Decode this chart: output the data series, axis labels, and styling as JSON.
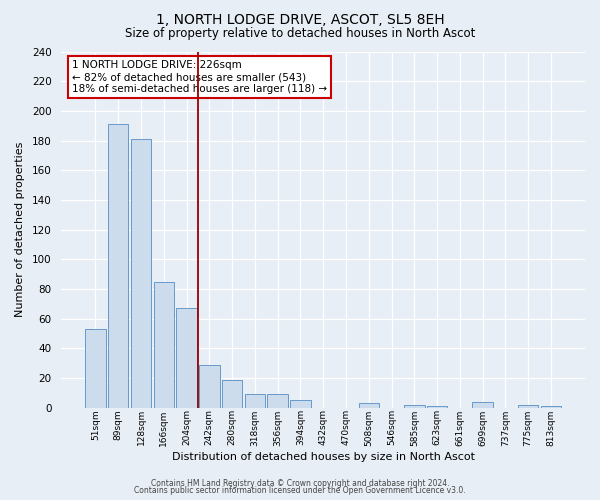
{
  "title": "1, NORTH LODGE DRIVE, ASCOT, SL5 8EH",
  "subtitle": "Size of property relative to detached houses in North Ascot",
  "xlabel": "Distribution of detached houses by size in North Ascot",
  "ylabel": "Number of detached properties",
  "bar_color": "#ccdcec",
  "bar_edge_color": "#6699cc",
  "categories": [
    "51sqm",
    "89sqm",
    "128sqm",
    "166sqm",
    "204sqm",
    "242sqm",
    "280sqm",
    "318sqm",
    "356sqm",
    "394sqm",
    "432sqm",
    "470sqm",
    "508sqm",
    "546sqm",
    "585sqm",
    "623sqm",
    "661sqm",
    "699sqm",
    "737sqm",
    "775sqm",
    "813sqm"
  ],
  "values": [
    53,
    191,
    181,
    85,
    67,
    29,
    19,
    9,
    9,
    5,
    0,
    0,
    3,
    0,
    2,
    1,
    0,
    4,
    0,
    2,
    1
  ],
  "vline_color": "#990000",
  "ylim": [
    0,
    240
  ],
  "yticks": [
    0,
    20,
    40,
    60,
    80,
    100,
    120,
    140,
    160,
    180,
    200,
    220,
    240
  ],
  "annotation_title": "1 NORTH LODGE DRIVE: 226sqm",
  "annotation_line1": "← 82% of detached houses are smaller (543)",
  "annotation_line2": "18% of semi-detached houses are larger (118) →",
  "annotation_box_color": "#ffffff",
  "annotation_box_edge": "#cc0000",
  "footer1": "Contains HM Land Registry data © Crown copyright and database right 2024.",
  "footer2": "Contains public sector information licensed under the Open Government Licence v3.0.",
  "background_color": "#e8eef5",
  "grid_color": "#d0d8e0",
  "vline_pos": 4.5
}
